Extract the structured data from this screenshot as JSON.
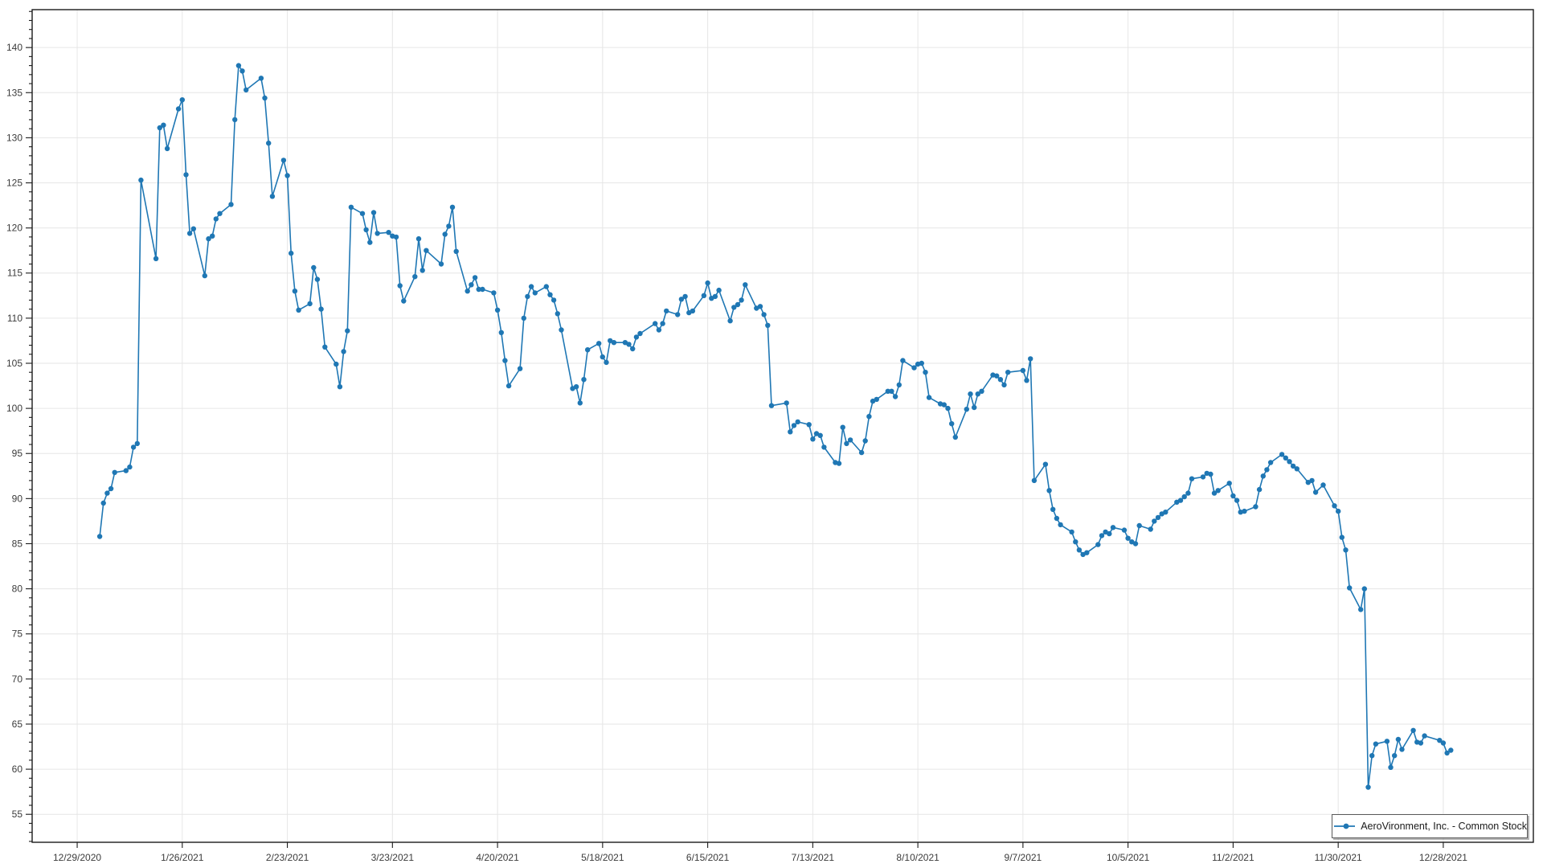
{
  "chart_data": {
    "type": "line",
    "title": "",
    "xlabel": "",
    "ylabel": "",
    "grid": true,
    "line_color": "#1f77b4",
    "grid_color": "#e6e6e6",
    "axis_color": "#1a1a1a",
    "marker": "circle",
    "legend": {
      "position": "bottom-right",
      "label": "AeroVironment, Inc. - Common Stock"
    },
    "x_ticks": [
      "12/29/2020",
      "1/26/2021",
      "2/23/2021",
      "3/23/2021",
      "4/20/2021",
      "5/18/2021",
      "6/15/2021",
      "7/13/2021",
      "8/10/2021",
      "9/7/2021",
      "10/5/2021",
      "11/2/2021",
      "11/30/2021",
      "12/28/2021"
    ],
    "y_ticks": [
      55,
      60,
      65,
      70,
      75,
      80,
      85,
      90,
      95,
      100,
      105,
      110,
      115,
      120,
      125,
      130,
      135,
      140
    ],
    "y_minor_step": 1,
    "xlim_dates": [
      "12/17/2020",
      "1/21/2022"
    ],
    "ylim": [
      51.9,
      144.2
    ],
    "series": [
      {
        "name": "AeroVironment, Inc. - Common Stock",
        "color": "#1f77b4",
        "points": [
          [
            "1/4/2021",
            85.8
          ],
          [
            "1/5/2021",
            89.5
          ],
          [
            "1/6/2021",
            90.6
          ],
          [
            "1/7/2021",
            91.1
          ],
          [
            "1/8/2021",
            92.9
          ],
          [
            "1/11/2021",
            93.1
          ],
          [
            "1/12/2021",
            93.5
          ],
          [
            "1/13/2021",
            95.7
          ],
          [
            "1/14/2021",
            96.1
          ],
          [
            "1/15/2021",
            125.3
          ],
          [
            "1/19/2021",
            116.6
          ],
          [
            "1/20/2021",
            131.1
          ],
          [
            "1/21/2021",
            131.4
          ],
          [
            "1/22/2021",
            128.8
          ],
          [
            "1/25/2021",
            133.2
          ],
          [
            "1/26/2021",
            134.2
          ],
          [
            "1/27/2021",
            125.9
          ],
          [
            "1/28/2021",
            119.4
          ],
          [
            "1/29/2021",
            119.9
          ],
          [
            "2/1/2021",
            114.7
          ],
          [
            "2/2/2021",
            118.8
          ],
          [
            "2/3/2021",
            119.1
          ],
          [
            "2/4/2021",
            121.0
          ],
          [
            "2/5/2021",
            121.6
          ],
          [
            "2/8/2021",
            122.6
          ],
          [
            "2/9/2021",
            132.0
          ],
          [
            "2/10/2021",
            138.0
          ],
          [
            "2/11/2021",
            137.4
          ],
          [
            "2/12/2021",
            135.3
          ],
          [
            "2/16/2021",
            136.6
          ],
          [
            "2/17/2021",
            134.4
          ],
          [
            "2/18/2021",
            129.4
          ],
          [
            "2/19/2021",
            123.5
          ],
          [
            "2/22/2021",
            127.5
          ],
          [
            "2/23/2021",
            125.8
          ],
          [
            "2/24/2021",
            117.2
          ],
          [
            "2/25/2021",
            113.0
          ],
          [
            "2/26/2021",
            110.9
          ],
          [
            "3/1/2021",
            111.6
          ],
          [
            "3/2/2021",
            115.6
          ],
          [
            "3/3/2021",
            114.3
          ],
          [
            "3/4/2021",
            111.0
          ],
          [
            "3/5/2021",
            106.8
          ],
          [
            "3/8/2021",
            104.9
          ],
          [
            "3/9/2021",
            102.4
          ],
          [
            "3/10/2021",
            106.3
          ],
          [
            "3/11/2021",
            108.6
          ],
          [
            "3/12/2021",
            122.3
          ],
          [
            "3/15/2021",
            121.6
          ],
          [
            "3/16/2021",
            119.8
          ],
          [
            "3/17/2021",
            118.4
          ],
          [
            "3/18/2021",
            121.7
          ],
          [
            "3/19/2021",
            119.4
          ],
          [
            "3/22/2021",
            119.5
          ],
          [
            "3/23/2021",
            119.1
          ],
          [
            "3/24/2021",
            119.0
          ],
          [
            "3/25/2021",
            113.6
          ],
          [
            "3/26/2021",
            111.9
          ],
          [
            "3/29/2021",
            114.6
          ],
          [
            "3/30/2021",
            118.8
          ],
          [
            "3/31/2021",
            115.3
          ],
          [
            "4/1/2021",
            117.5
          ],
          [
            "4/5/2021",
            116.0
          ],
          [
            "4/6/2021",
            119.3
          ],
          [
            "4/7/2021",
            120.2
          ],
          [
            "4/8/2021",
            122.3
          ],
          [
            "4/9/2021",
            117.4
          ],
          [
            "4/12/2021",
            113.0
          ],
          [
            "4/13/2021",
            113.7
          ],
          [
            "4/14/2021",
            114.5
          ],
          [
            "4/15/2021",
            113.2
          ],
          [
            "4/16/2021",
            113.2
          ],
          [
            "4/19/2021",
            112.8
          ],
          [
            "4/20/2021",
            110.9
          ],
          [
            "4/21/2021",
            108.4
          ],
          [
            "4/22/2021",
            105.3
          ],
          [
            "4/23/2021",
            102.5
          ],
          [
            "4/26/2021",
            104.4
          ],
          [
            "4/27/2021",
            110.0
          ],
          [
            "4/28/2021",
            112.4
          ],
          [
            "4/29/2021",
            113.5
          ],
          [
            "4/30/2021",
            112.8
          ],
          [
            "5/3/2021",
            113.5
          ],
          [
            "5/4/2021",
            112.6
          ],
          [
            "5/5/2021",
            112.0
          ],
          [
            "5/6/2021",
            110.5
          ],
          [
            "5/7/2021",
            108.7
          ],
          [
            "5/10/2021",
            102.2
          ],
          [
            "5/11/2021",
            102.4
          ],
          [
            "5/12/2021",
            100.6
          ],
          [
            "5/13/2021",
            103.2
          ],
          [
            "5/14/2021",
            106.5
          ],
          [
            "5/17/2021",
            107.2
          ],
          [
            "5/18/2021",
            105.7
          ],
          [
            "5/19/2021",
            105.1
          ],
          [
            "5/20/2021",
            107.5
          ],
          [
            "5/21/2021",
            107.3
          ],
          [
            "5/24/2021",
            107.3
          ],
          [
            "5/25/2021",
            107.1
          ],
          [
            "5/26/2021",
            106.6
          ],
          [
            "5/27/2021",
            107.9
          ],
          [
            "5/28/2021",
            108.3
          ],
          [
            "6/1/2021",
            109.4
          ],
          [
            "6/2/2021",
            108.7
          ],
          [
            "6/3/2021",
            109.4
          ],
          [
            "6/4/2021",
            110.8
          ],
          [
            "6/7/2021",
            110.4
          ],
          [
            "6/8/2021",
            112.1
          ],
          [
            "6/9/2021",
            112.4
          ],
          [
            "6/10/2021",
            110.6
          ],
          [
            "6/11/2021",
            110.8
          ],
          [
            "6/14/2021",
            112.5
          ],
          [
            "6/15/2021",
            113.9
          ],
          [
            "6/16/2021",
            112.2
          ],
          [
            "6/17/2021",
            112.4
          ],
          [
            "6/18/2021",
            113.1
          ],
          [
            "6/21/2021",
            109.7
          ],
          [
            "6/22/2021",
            111.2
          ],
          [
            "6/23/2021",
            111.5
          ],
          [
            "6/24/2021",
            112.0
          ],
          [
            "6/25/2021",
            113.7
          ],
          [
            "6/28/2021",
            111.1
          ],
          [
            "6/29/2021",
            111.3
          ],
          [
            "6/30/2021",
            110.4
          ],
          [
            "7/1/2021",
            109.2
          ],
          [
            "7/2/2021",
            100.3
          ],
          [
            "7/6/2021",
            100.6
          ],
          [
            "7/7/2021",
            97.4
          ],
          [
            "7/8/2021",
            98.1
          ],
          [
            "7/9/2021",
            98.5
          ],
          [
            "7/12/2021",
            98.2
          ],
          [
            "7/13/2021",
            96.6
          ],
          [
            "7/14/2021",
            97.2
          ],
          [
            "7/15/2021",
            97.0
          ],
          [
            "7/16/2021",
            95.7
          ],
          [
            "7/19/2021",
            94.0
          ],
          [
            "7/20/2021",
            93.9
          ],
          [
            "7/21/2021",
            97.9
          ],
          [
            "7/22/2021",
            96.1
          ],
          [
            "7/23/2021",
            96.5
          ],
          [
            "7/26/2021",
            95.1
          ],
          [
            "7/27/2021",
            96.4
          ],
          [
            "7/28/2021",
            99.1
          ],
          [
            "7/29/2021",
            100.8
          ],
          [
            "7/30/2021",
            101.0
          ],
          [
            "8/2/2021",
            101.9
          ],
          [
            "8/3/2021",
            101.9
          ],
          [
            "8/4/2021",
            101.3
          ],
          [
            "8/5/2021",
            102.6
          ],
          [
            "8/6/2021",
            105.3
          ],
          [
            "8/9/2021",
            104.5
          ],
          [
            "8/10/2021",
            104.9
          ],
          [
            "8/11/2021",
            105.0
          ],
          [
            "8/12/2021",
            104.0
          ],
          [
            "8/13/2021",
            101.2
          ],
          [
            "8/16/2021",
            100.5
          ],
          [
            "8/17/2021",
            100.4
          ],
          [
            "8/18/2021",
            100.0
          ],
          [
            "8/19/2021",
            98.3
          ],
          [
            "8/20/2021",
            96.8
          ],
          [
            "8/23/2021",
            99.9
          ],
          [
            "8/24/2021",
            101.6
          ],
          [
            "8/25/2021",
            100.1
          ],
          [
            "8/26/2021",
            101.6
          ],
          [
            "8/27/2021",
            101.9
          ],
          [
            "8/30/2021",
            103.7
          ],
          [
            "8/31/2021",
            103.6
          ],
          [
            "9/1/2021",
            103.2
          ],
          [
            "9/2/2021",
            102.6
          ],
          [
            "9/3/2021",
            104.0
          ],
          [
            "9/7/2021",
            104.2
          ],
          [
            "9/8/2021",
            103.1
          ],
          [
            "9/9/2021",
            105.5
          ],
          [
            "9/10/2021",
            92.0
          ],
          [
            "9/13/2021",
            93.8
          ],
          [
            "9/14/2021",
            90.9
          ],
          [
            "9/15/2021",
            88.8
          ],
          [
            "9/16/2021",
            87.8
          ],
          [
            "9/17/2021",
            87.1
          ],
          [
            "9/20/2021",
            86.3
          ],
          [
            "9/21/2021",
            85.2
          ],
          [
            "9/22/2021",
            84.3
          ],
          [
            "9/23/2021",
            83.8
          ],
          [
            "9/24/2021",
            84.0
          ],
          [
            "9/27/2021",
            84.9
          ],
          [
            "9/28/2021",
            85.9
          ],
          [
            "9/29/2021",
            86.3
          ],
          [
            "9/30/2021",
            86.1
          ],
          [
            "10/1/2021",
            86.8
          ],
          [
            "10/4/2021",
            86.5
          ],
          [
            "10/5/2021",
            85.6
          ],
          [
            "10/6/2021",
            85.2
          ],
          [
            "10/7/2021",
            85.0
          ],
          [
            "10/8/2021",
            87.0
          ],
          [
            "10/11/2021",
            86.6
          ],
          [
            "10/12/2021",
            87.5
          ],
          [
            "10/13/2021",
            87.9
          ],
          [
            "10/14/2021",
            88.3
          ],
          [
            "10/15/2021",
            88.5
          ],
          [
            "10/18/2021",
            89.6
          ],
          [
            "10/19/2021",
            89.8
          ],
          [
            "10/20/2021",
            90.2
          ],
          [
            "10/21/2021",
            90.6
          ],
          [
            "10/22/2021",
            92.2
          ],
          [
            "10/25/2021",
            92.4
          ],
          [
            "10/26/2021",
            92.8
          ],
          [
            "10/27/2021",
            92.7
          ],
          [
            "10/28/2021",
            90.6
          ],
          [
            "10/29/2021",
            90.9
          ],
          [
            "11/1/2021",
            91.7
          ],
          [
            "11/2/2021",
            90.3
          ],
          [
            "11/3/2021",
            89.8
          ],
          [
            "11/4/2021",
            88.5
          ],
          [
            "11/5/2021",
            88.6
          ],
          [
            "11/8/2021",
            89.1
          ],
          [
            "11/9/2021",
            91.0
          ],
          [
            "11/10/2021",
            92.5
          ],
          [
            "11/11/2021",
            93.2
          ],
          [
            "11/12/2021",
            94.0
          ],
          [
            "11/15/2021",
            94.9
          ],
          [
            "11/16/2021",
            94.5
          ],
          [
            "11/17/2021",
            94.1
          ],
          [
            "11/18/2021",
            93.6
          ],
          [
            "11/19/2021",
            93.3
          ],
          [
            "11/22/2021",
            91.8
          ],
          [
            "11/23/2021",
            92.0
          ],
          [
            "11/24/2021",
            90.7
          ],
          [
            "11/26/2021",
            91.5
          ],
          [
            "11/29/2021",
            89.2
          ],
          [
            "11/30/2021",
            88.6
          ],
          [
            "12/1/2021",
            85.7
          ],
          [
            "12/2/2021",
            84.3
          ],
          [
            "12/3/2021",
            80.1
          ],
          [
            "12/6/2021",
            77.7
          ],
          [
            "12/7/2021",
            80.0
          ],
          [
            "12/8/2021",
            58.0
          ],
          [
            "12/9/2021",
            61.5
          ],
          [
            "12/10/2021",
            62.8
          ],
          [
            "12/13/2021",
            63.1
          ],
          [
            "12/14/2021",
            60.2
          ],
          [
            "12/15/2021",
            61.5
          ],
          [
            "12/16/2021",
            63.3
          ],
          [
            "12/17/2021",
            62.2
          ],
          [
            "12/20/2021",
            64.3
          ],
          [
            "12/21/2021",
            63.0
          ],
          [
            "12/22/2021",
            62.9
          ],
          [
            "12/23/2021",
            63.7
          ],
          [
            "12/27/2021",
            63.2
          ],
          [
            "12/28/2021",
            62.9
          ],
          [
            "12/29/2021",
            61.8
          ],
          [
            "12/30/2021",
            62.1
          ]
        ]
      }
    ]
  }
}
